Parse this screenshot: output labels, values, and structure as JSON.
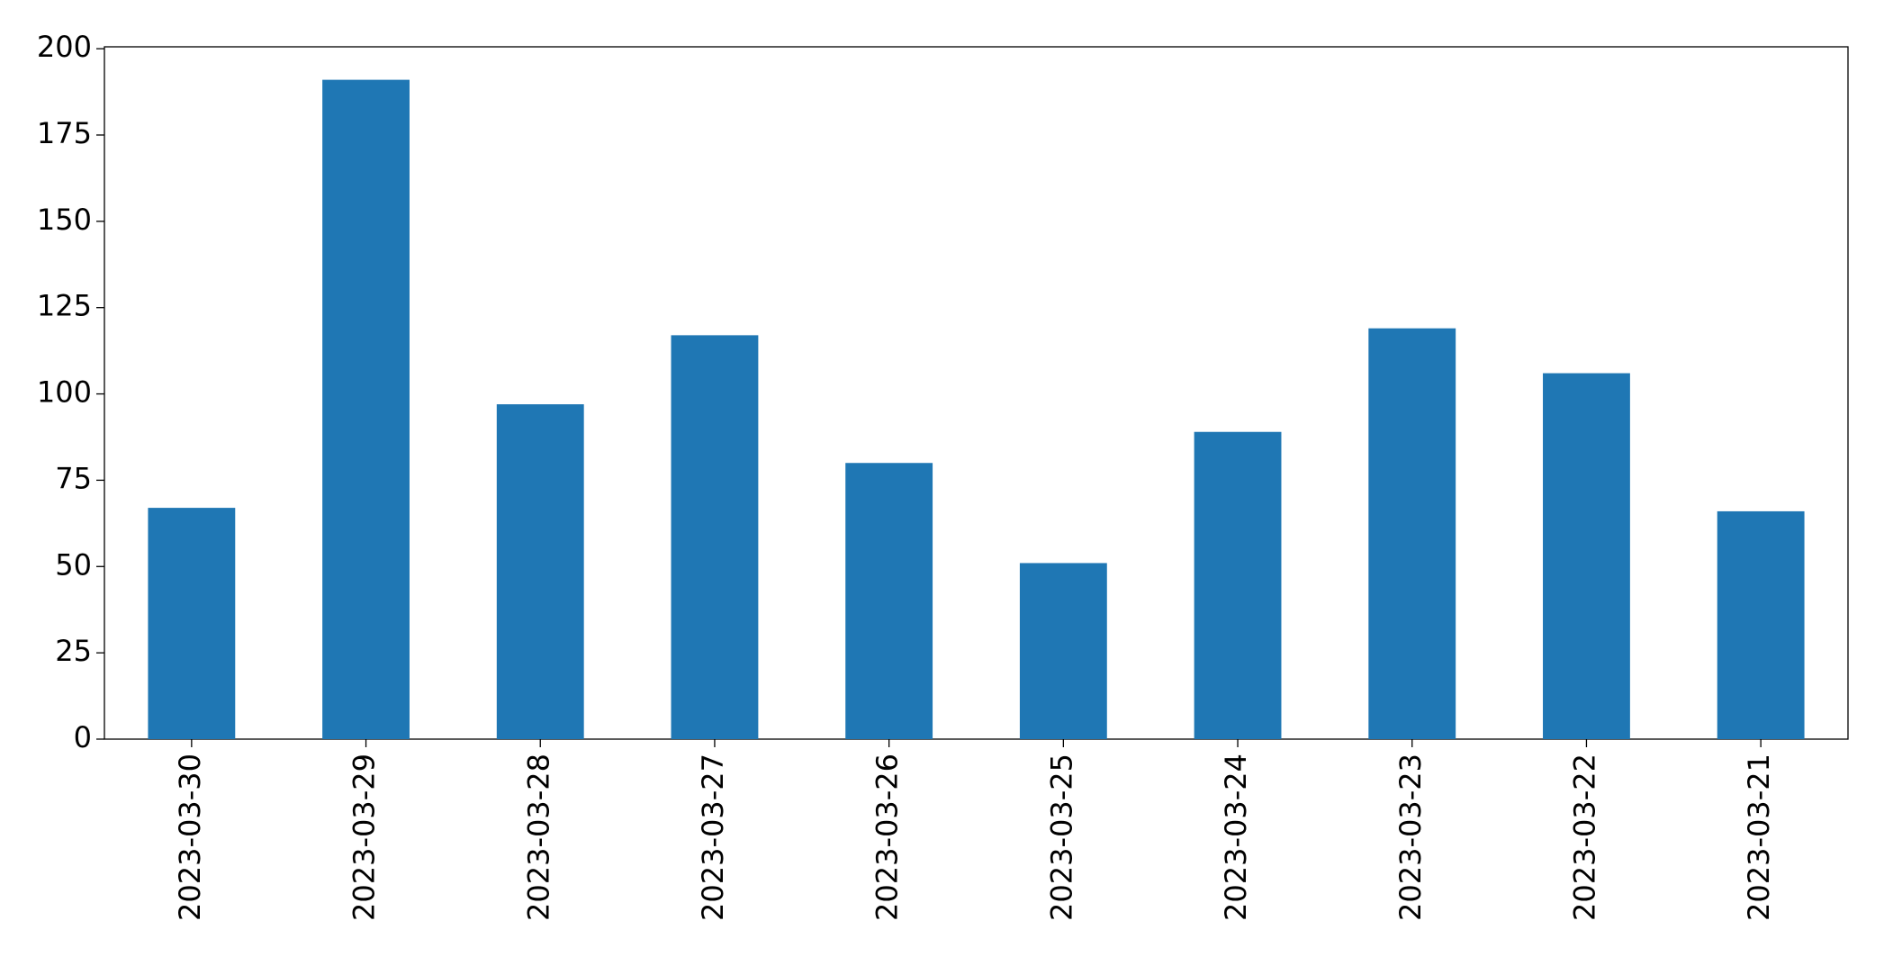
{
  "chart_data": {
    "type": "bar",
    "categories": [
      "2023-03-30",
      "2023-03-29",
      "2023-03-28",
      "2023-03-27",
      "2023-03-26",
      "2023-03-25",
      "2023-03-24",
      "2023-03-23",
      "2023-03-22",
      "2023-03-21"
    ],
    "values": [
      67,
      191,
      97,
      117,
      80,
      51,
      89,
      119,
      106,
      66
    ],
    "color": "#1f77b4",
    "ylim": [
      0,
      200.55
    ],
    "yticks": [
      0,
      25,
      50,
      75,
      100,
      125,
      150,
      175,
      200
    ],
    "grid": false
  }
}
